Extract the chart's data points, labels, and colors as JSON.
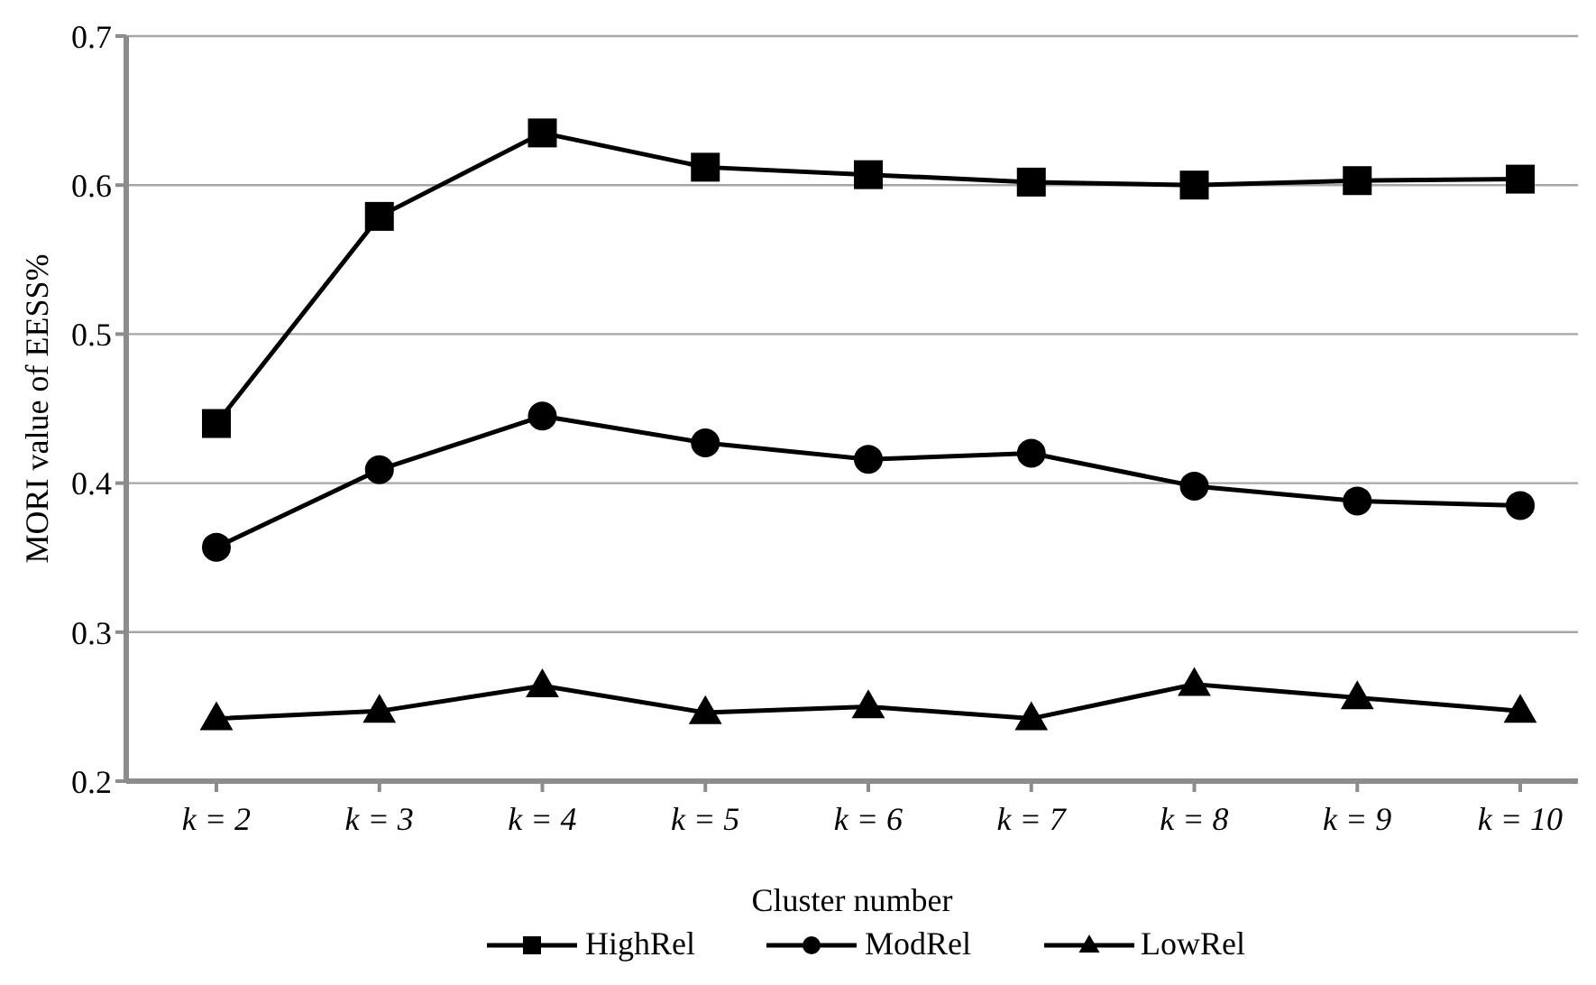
{
  "chart_data": {
    "type": "line",
    "xlabel": "Cluster number",
    "ylabel": "MORI value of EESS%",
    "categories": [
      "k = 2",
      "k = 3",
      "k = 4",
      "k = 5",
      "k = 6",
      "k = 7",
      "k = 8",
      "k = 9",
      "k = 10"
    ],
    "series": [
      {
        "name": "HighRel",
        "color": "#000000",
        "marker": "square",
        "values": [
          0.44,
          0.579,
          0.635,
          0.612,
          0.607,
          0.602,
          0.6,
          0.603,
          0.604
        ]
      },
      {
        "name": "ModRel",
        "color": "#000000",
        "marker": "circle",
        "values": [
          0.357,
          0.409,
          0.445,
          0.427,
          0.416,
          0.42,
          0.398,
          0.388,
          0.385
        ]
      },
      {
        "name": "LowRel",
        "color": "#000000",
        "marker": "triangle",
        "values": [
          0.242,
          0.247,
          0.264,
          0.246,
          0.25,
          0.242,
          0.265,
          0.256,
          0.247
        ]
      }
    ],
    "ylim": [
      0.2,
      0.7
    ],
    "yticks": [
      0.2,
      0.3,
      0.4,
      0.5,
      0.6,
      0.7
    ],
    "grid": "y",
    "legend": "bottom",
    "line_style": "solid"
  }
}
